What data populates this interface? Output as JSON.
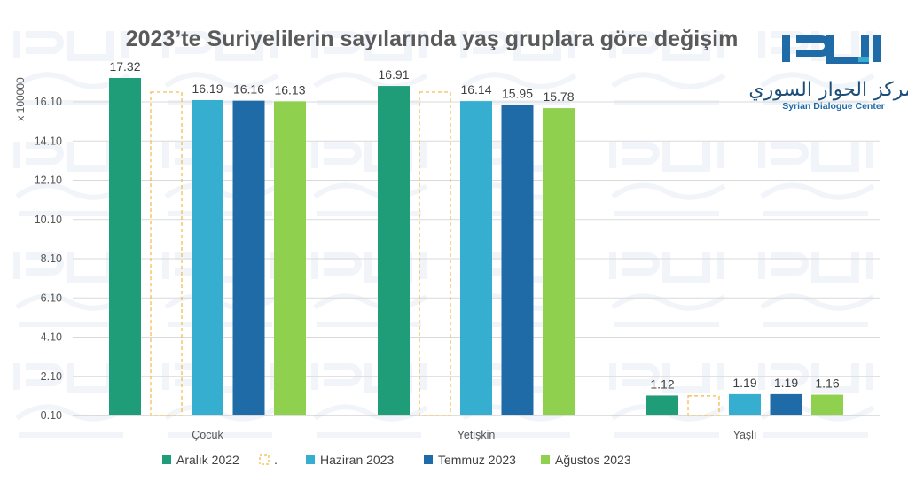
{
  "chart_data": {
    "type": "bar",
    "title": "2023’te Suriyelilerin sayılarında yaş gruplara göre değişim",
    "ylabel": "x 100000",
    "xlabel": "",
    "ylim": [
      0.1,
      17.32
    ],
    "yticks": [
      "0.10",
      "2.10",
      "4.10",
      "6.10",
      "8.10",
      "10.10",
      "12.10",
      "14.10",
      "16.10"
    ],
    "grid": true,
    "legend_position": "bottom",
    "categories": [
      "Çocuk",
      "Yetişkin",
      "Yaşlı"
    ],
    "series": [
      {
        "name": "Aralık 2022",
        "values": [
          17.32,
          16.91,
          1.12
        ],
        "labels": [
          "17.32",
          "16.91",
          "1.12"
        ],
        "color": "#1f9c78",
        "style": "solid"
      },
      {
        "name": ".",
        "values": [
          16.6,
          16.6,
          1.1
        ],
        "labels": [
          "",
          "",
          ""
        ],
        "color": "#f2b741",
        "style": "dashed-outline"
      },
      {
        "name": "Haziran 2023",
        "values": [
          16.19,
          16.14,
          1.19
        ],
        "labels": [
          "16.19",
          "16.14",
          "1.19"
        ],
        "color": "#36aed0",
        "style": "solid"
      },
      {
        "name": "Temmuz 2023",
        "values": [
          16.16,
          15.95,
          1.19
        ],
        "labels": [
          "16.16",
          "15.95",
          "1.19"
        ],
        "color": "#1f6ba8",
        "style": "solid"
      },
      {
        "name": "Ağustos 2023",
        "values": [
          16.13,
          15.78,
          1.16
        ],
        "labels": [
          "16.13",
          "15.78",
          "1.16"
        ],
        "color": "#8fd14f",
        "style": "solid"
      }
    ]
  },
  "logo": {
    "latin_text": "Syrian Dialogue Center",
    "arabic_text": "مركز الحوار السوري",
    "primary_color": "#1f6ba8",
    "accent_color": "#36aed0"
  }
}
